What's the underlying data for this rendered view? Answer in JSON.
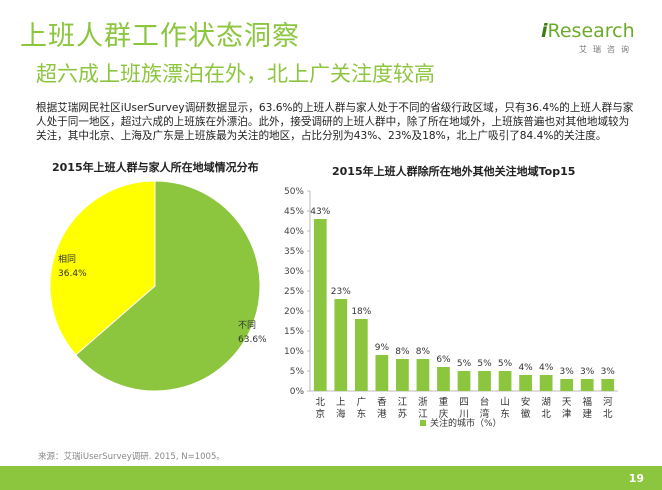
{
  "header": {
    "title": "上班人群工作状态洞察",
    "subtitle": "超六成上班族漂泊在外，北上广关注度较高"
  },
  "logo": {
    "brand_i": "i",
    "brand_rest": "Research",
    "sub": "艾瑞咨询",
    "color": "#6cab2a"
  },
  "summary": "根据艾瑞网民社区iUserSurvey调研数据显示，63.6%的上班人群与家人处于不同的省级行政区域，只有36.4%的上班人群与家人处于同一地区，超过六成的上班族在外漂泊。此外，接受调研的上班人群中，除了所在地域外，上班族普遍也对其他地域较为关注，其中北京、上海及广东是上班族最为关注的地区，占比分别为43%、23%及18%，北上广吸引了84.4%的关注度。",
  "source": "来源：艾瑞iUserSurvey调研. 2015, N=1005。",
  "page_number": "19",
  "chart_data": [
    {
      "type": "pie",
      "title": "2015年上班人群与家人所在地域情况分布",
      "slices": [
        {
          "label": "相同",
          "value": 36.4,
          "value_label": "36.4%",
          "color": "#ffff00"
        },
        {
          "label": "不同",
          "value": 63.6,
          "value_label": "63.6%",
          "color": "#8cc63e"
        }
      ]
    },
    {
      "type": "bar",
      "title": "2015年上班人群除所在地外其他关注地域Top15",
      "categories": [
        "北京",
        "上海",
        "广东",
        "香港",
        "江苏",
        "浙江",
        "重庆",
        "四川",
        "台湾",
        "山东",
        "安徽",
        "湖北",
        "天津",
        "福建",
        "河北"
      ],
      "values": [
        43,
        23,
        18,
        9,
        8,
        8,
        6,
        5,
        5,
        5,
        4,
        4,
        3,
        3,
        3
      ],
      "value_labels": [
        "43%",
        "23%",
        "18%",
        "9%",
        "8%",
        "8%",
        "6%",
        "5%",
        "5%",
        "5%",
        "4%",
        "4%",
        "3%",
        "3%",
        "3%"
      ],
      "yticks": [
        "0%",
        "5%",
        "10%",
        "15%",
        "20%",
        "25%",
        "30%",
        "35%",
        "40%",
        "45%",
        "50%"
      ],
      "ylim": [
        0,
        50
      ],
      "legend": "关注的城市（%）",
      "legend_position": "bottom",
      "bar_color": "#8cc63e",
      "grid": false
    }
  ]
}
